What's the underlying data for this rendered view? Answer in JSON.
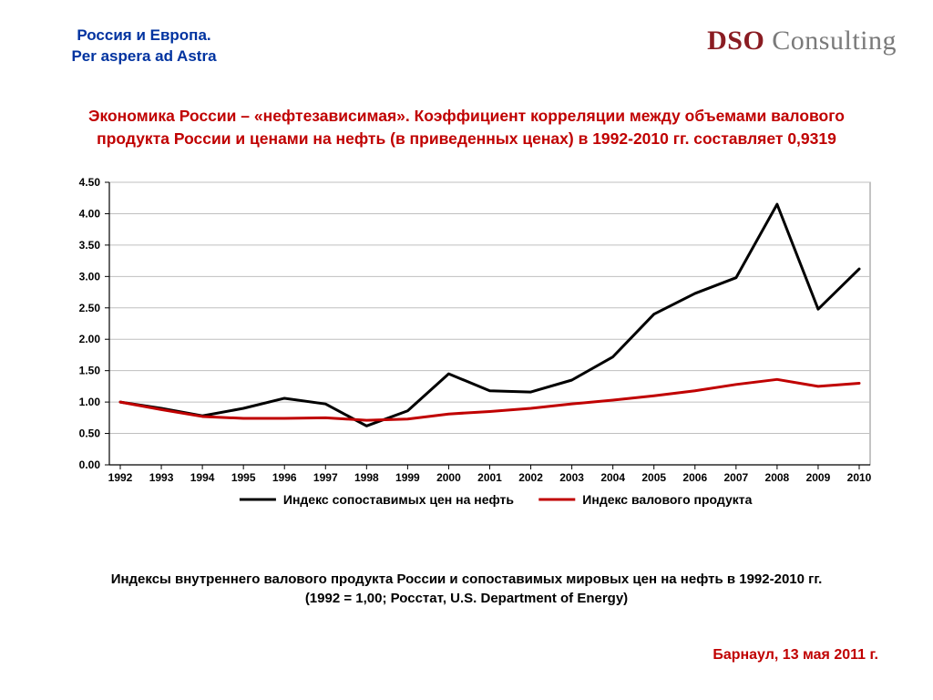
{
  "header": {
    "line1": "Россия и Европа.",
    "line2": "Per aspera ad Astra"
  },
  "logo": {
    "dso": "DSO ",
    "consulting": "Consulting"
  },
  "title": {
    "line1": "Экономика России – «нефтезависимая». Коэффициент корреляции между объемами валового",
    "line2": "продукта России и ценами на нефть (в приведенных ценах) в 1992-2010 гг. составляет 0,9319"
  },
  "chart": {
    "type": "line",
    "background_color": "#ffffff",
    "plot_border_color": "#888888",
    "grid_color": "#bfbfbf",
    "axis_color": "#000000",
    "tick_fontsize": 12,
    "x_labels": [
      "1992",
      "1993",
      "1994",
      "1995",
      "1996",
      "1997",
      "1998",
      "1999",
      "2000",
      "2001",
      "2002",
      "2003",
      "2004",
      "2005",
      "2006",
      "2007",
      "2008",
      "2009",
      "2010"
    ],
    "y_min": 0.0,
    "y_max": 4.5,
    "y_step": 0.5,
    "y_tick_labels": [
      "0.00",
      "0.50",
      "1.00",
      "1.50",
      "2.00",
      "2.50",
      "3.00",
      "3.50",
      "4.00",
      "4.50"
    ],
    "series": [
      {
        "name": "Индекс сопоставимых цен на нефть",
        "color": "#000000",
        "width": 3,
        "values": [
          1.0,
          0.9,
          0.78,
          0.9,
          1.06,
          0.97,
          0.62,
          0.86,
          1.45,
          1.18,
          1.16,
          1.35,
          1.72,
          2.4,
          2.73,
          2.98,
          4.15,
          2.48,
          3.12
        ]
      },
      {
        "name": "Индекс валового продукта",
        "color": "#c00000",
        "width": 3,
        "values": [
          1.0,
          0.88,
          0.77,
          0.74,
          0.74,
          0.75,
          0.71,
          0.73,
          0.81,
          0.85,
          0.9,
          0.97,
          1.03,
          1.1,
          1.18,
          1.28,
          1.36,
          1.25,
          1.3
        ]
      }
    ],
    "legend": {
      "items": [
        {
          "label": "Индекс сопоставимых цен на нефть",
          "color": "#000000"
        },
        {
          "label": "Индекс валового продукта",
          "color": "#c00000"
        }
      ]
    }
  },
  "caption": {
    "line1": "Индексы внутреннего валового продукта России и сопоставимых мировых цен на нефть в 1992-2010 гг.",
    "line2": "(1992 = 1,00; Росстат, U.S. Department of Energy)"
  },
  "footer": "Барнаул, 13 мая 2011 г."
}
